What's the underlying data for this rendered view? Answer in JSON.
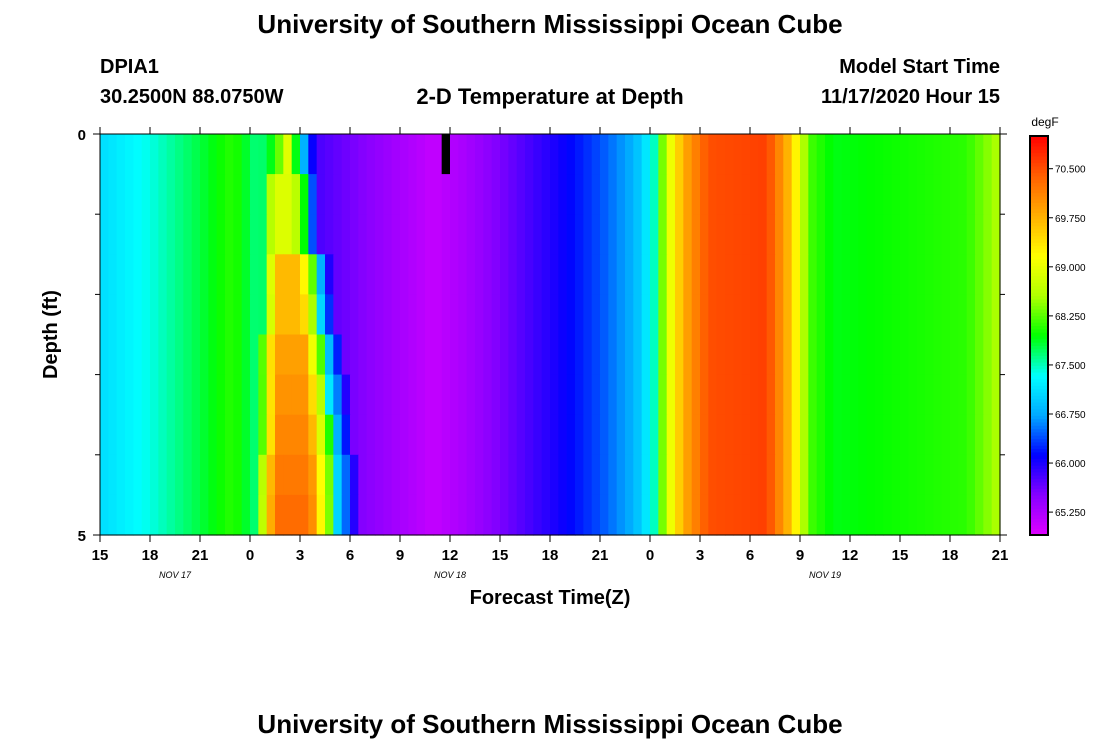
{
  "header": {
    "title_top": "University of Southern Mississippi Ocean Cube",
    "station_id": "DPIA1",
    "station_coords": "30.2500N 88.0750W",
    "plot_title": "2-D Temperature at Depth",
    "model_start_label": "Model Start Time",
    "model_start_value": "11/17/2020 Hour 15",
    "title_bottom": "University of Southern Mississippi Ocean Cube"
  },
  "chart_data": {
    "type": "heatmap",
    "title": "2-D Temperature at Depth",
    "xlabel": "Forecast Time(Z)",
    "ylabel": "Depth (ft)",
    "x_tick_labels": [
      "15",
      "18",
      "21",
      "0",
      "3",
      "6",
      "9",
      "12",
      "15",
      "18",
      "21",
      "0",
      "3",
      "6",
      "9",
      "12",
      "15",
      "18",
      "21"
    ],
    "x_hours_from_start": [
      0,
      3,
      6,
      9,
      12,
      15,
      18,
      21,
      24,
      27,
      30,
      33,
      36,
      39,
      42,
      45,
      48,
      51,
      54
    ],
    "date_labels": [
      {
        "label": "NOV 17",
        "hour": 4.5
      },
      {
        "label": "NOV 18",
        "hour": 21
      },
      {
        "label": "NOV 19",
        "hour": 43.5
      }
    ],
    "ylim": [
      0,
      5
    ],
    "y_tick_labels": [
      {
        "value": 0,
        "label": "0"
      },
      {
        "value": 5,
        "label": "5"
      }
    ],
    "y_minor_ticks": [
      1,
      2,
      3,
      4
    ],
    "colorbar": {
      "unit": "degF",
      "min": 64.9,
      "max": 71.0,
      "tick_values": [
        65.25,
        66.0,
        66.75,
        67.5,
        68.25,
        69.0,
        69.75,
        70.5
      ],
      "tick_labels": [
        "65.250",
        "66.000",
        "66.750",
        "67.500",
        "68.250",
        "69.000",
        "69.750",
        "70.500"
      ],
      "colors": [
        "#e000ff",
        "#8800ff",
        "#0000ff",
        "#00a8ff",
        "#00ffff",
        "#00ff00",
        "#b0ff00",
        "#ffff00",
        "#ffb000",
        "#ff6000",
        "#ff0000"
      ]
    },
    "depth_levels": [
      0.25,
      0.75,
      1.25,
      1.75,
      2.25,
      2.75,
      3.25,
      3.75,
      4.25,
      4.75
    ],
    "time_profile": [
      {
        "hour": 0,
        "temp": 67.1
      },
      {
        "hour": 3,
        "temp": 67.4
      },
      {
        "hour": 6,
        "temp": 67.8
      },
      {
        "hour": 8,
        "temp": 68.1
      },
      {
        "hour": 9.5,
        "temp": 67.6
      },
      {
        "hour": 10.5,
        "temp": 68.0
      },
      {
        "hour": 11.3,
        "temp": 69.0
      },
      {
        "hour": 12,
        "temp": 67.3
      },
      {
        "hour": 12.4,
        "temp": 66.5
      },
      {
        "hour": 13,
        "temp": 65.8
      },
      {
        "hour": 15,
        "temp": 65.6
      },
      {
        "hour": 20,
        "temp": 65.1
      },
      {
        "hour": 22,
        "temp": 65.3
      },
      {
        "hour": 25,
        "temp": 65.7
      },
      {
        "hour": 28,
        "temp": 66.1
      },
      {
        "hour": 30,
        "temp": 66.4
      },
      {
        "hour": 32,
        "temp": 66.8
      },
      {
        "hour": 33.2,
        "temp": 67.4
      },
      {
        "hour": 34,
        "temp": 68.8
      },
      {
        "hour": 35,
        "temp": 69.8
      },
      {
        "hour": 36.5,
        "temp": 70.5
      },
      {
        "hour": 40,
        "temp": 70.6
      },
      {
        "hour": 41.5,
        "temp": 69.6
      },
      {
        "hour": 42.5,
        "temp": 68.2
      },
      {
        "hour": 44,
        "temp": 67.9
      },
      {
        "hour": 48,
        "temp": 68.0
      },
      {
        "hour": 52,
        "temp": 68.1
      },
      {
        "hour": 54,
        "temp": 68.6
      }
    ],
    "warm_pulse": {
      "levels": [
        {
          "depth": 0.25,
          "start": 9.8,
          "end": 12.0,
          "peak": 69.0
        },
        {
          "depth": 0.75,
          "start": 9.8,
          "end": 13.0,
          "peak": 68.9
        },
        {
          "depth": 1.25,
          "start": 9.8,
          "end": 13.0,
          "peak": 68.9
        },
        {
          "depth": 1.75,
          "start": 9.8,
          "end": 13.8,
          "peak": 69.7
        },
        {
          "depth": 2.25,
          "start": 9.8,
          "end": 14.0,
          "peak": 69.7
        },
        {
          "depth": 2.75,
          "start": 9.5,
          "end": 14.5,
          "peak": 69.9
        },
        {
          "depth": 3.25,
          "start": 9.5,
          "end": 14.8,
          "peak": 70.0
        },
        {
          "depth": 3.75,
          "start": 9.5,
          "end": 15.0,
          "peak": 70.1
        },
        {
          "depth": 4.25,
          "start": 9.3,
          "end": 15.3,
          "peak": 70.2
        },
        {
          "depth": 4.75,
          "start": 9.3,
          "end": 15.3,
          "peak": 70.3
        }
      ]
    },
    "missing_data": {
      "hour_start": 20.5,
      "hour_end": 21.0,
      "depth_start": 0,
      "depth_end": 0.5
    }
  }
}
